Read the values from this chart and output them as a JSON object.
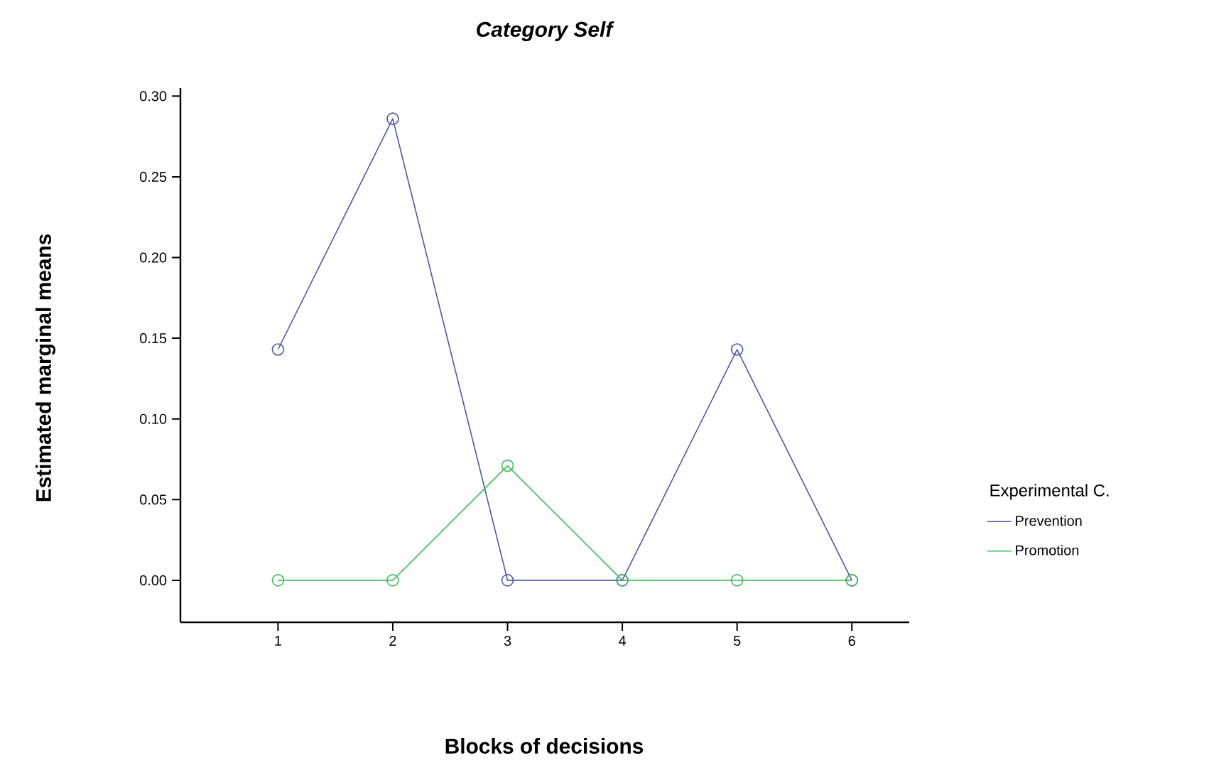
{
  "chart_data": {
    "type": "line",
    "title": "Category Self",
    "xlabel": "Blocks of decisions",
    "ylabel": "Estimated marginal means",
    "legend_title": "Experimental C.",
    "x": [
      1,
      2,
      3,
      4,
      5,
      6
    ],
    "series": [
      {
        "name": "Prevention",
        "color": "#4b56a8",
        "values": [
          0.143,
          0.286,
          0,
          0,
          0.143,
          0
        ]
      },
      {
        "name": "Promotion",
        "color": "#3dbb5a",
        "values": [
          0,
          0,
          0.071,
          0,
          0,
          0
        ]
      }
    ],
    "xlim": [
      0.15,
      6.5
    ],
    "ylim": [
      -0.026,
      0.305
    ],
    "xticks": [
      1,
      2,
      3,
      4,
      5,
      6
    ],
    "yticks": [
      {
        "value": 0,
        "label": "0.00"
      },
      {
        "value": 0.05,
        "label": "0.05"
      },
      {
        "value": 0.1,
        "label": "0.10"
      },
      {
        "value": 0.15,
        "label": "0.15"
      },
      {
        "value": 0.2,
        "label": "0.20"
      },
      {
        "value": 0.25,
        "label": "0.25"
      },
      {
        "value": 0.3,
        "label": "0.30"
      }
    ],
    "legend": "right",
    "marker": "circle",
    "line_style": "solid"
  }
}
